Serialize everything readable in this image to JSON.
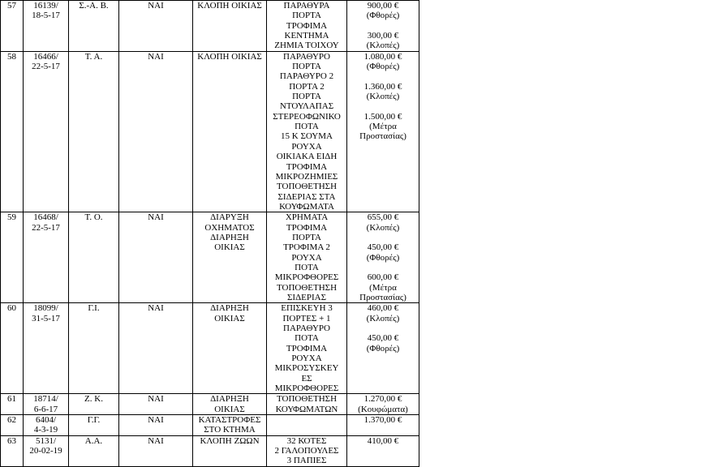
{
  "table": {
    "currency_symbol": "€",
    "rows": [
      {
        "index": "57",
        "case_lines": [
          "16139/",
          "18-5-17"
        ],
        "initials": "Σ.-Α. Β.",
        "recorded": "ΝΑΙ",
        "incident_lines": [
          "ΚΛΟΠΗ ΟΙΚΙΑΣ"
        ],
        "item_lines": [
          "ΠΑΡΑΘΥΡΑ",
          "ΠΟΡΤΑ",
          "ΤΡΟΦΙΜΑ",
          "ΚΕΝΤΗΜΑ",
          "ΖΗΜΙΑ ΤΟΙΧΟΥ"
        ],
        "amount_lines": [
          "900,00 €",
          "(Φθορές)",
          "",
          "300,00 €",
          "(Κλοπές)"
        ]
      },
      {
        "index": "58",
        "case_lines": [
          "16466/",
          "22-5-17"
        ],
        "initials": "Τ. Α.",
        "recorded": "ΝΑΙ",
        "incident_lines": [
          "ΚΛΟΠΗ ΟΙΚΙΑΣ"
        ],
        "item_lines": [
          "ΠΑΡΑΘΥΡΟ",
          "ΠΟΡΤΑ",
          "ΠΑΡΑΘΥΡΟ 2",
          "ΠΟΡΤΑ 2",
          "ΠΟΡΤΑ",
          "ΝΤΟΥΛΑΠΑΣ",
          "ΣΤΕΡΕΟΦΩΝΙΚΟ",
          "ΠΟΤΑ",
          "15 Κ ΣΟΥΜΑ",
          "ΡΟΥΧΑ",
          "ΟΙΚΙΑΚΑ ΕΙΔΗ",
          "ΤΡΟΦΙΜΑ",
          "ΜΙΚΡΟΖΗΜΙΕΣ",
          "ΤΟΠΟΘΕΤΗΣΗ",
          "ΣΙΔΕΡΙΑΣ ΣΤΑ",
          "ΚΟΥΦΩΜΑΤΑ"
        ],
        "amount_lines": [
          "1.080,00 €",
          "(Φθορές)",
          "",
          "1.360,00 €",
          "(Κλοπές)",
          "",
          "1.500,00 €",
          "(Μέτρα",
          "Προστασίας)"
        ]
      },
      {
        "index": "59",
        "case_lines": [
          "16468/",
          "22-5-17"
        ],
        "initials": "Τ. Ο.",
        "recorded": "ΝΑΙ",
        "incident_lines": [
          "ΔΙΑΡΥΞΗ",
          "ΟΧΗΜΑΤΟΣ",
          "ΔΙΑΡΗΞΗ",
          "ΟΙΚΙΑΣ"
        ],
        "item_lines": [
          "ΧΡΗΜΑΤΑ",
          "ΤΡΟΦΙΜΑ",
          "ΠΟΡΤΑ",
          "ΤΡΟΦΙΜΑ 2",
          "ΡΟΥΧΑ",
          "ΠΟΤΑ",
          "ΜΙΚΡΟΦΘΟΡΕΣ",
          "ΤΟΠΟΘΕΤΗΣΗ",
          "ΣΙΔΕΡΙΑΣ"
        ],
        "amount_lines": [
          "655,00 €",
          "(Κλοπές)",
          "",
          "450,00 €",
          "(Φθορές)",
          "",
          "600,00 €",
          "(Μέτρα",
          "Προστασίας)"
        ]
      },
      {
        "index": "60",
        "case_lines": [
          "18099/",
          "31-5-17"
        ],
        "initials": "Γ.Ι.",
        "recorded": "ΝΑΙ",
        "incident_lines": [
          "ΔΙΑΡΗΞΗ",
          "ΟΙΚΙΑΣ"
        ],
        "item_lines": [
          "ΕΠΙΣΚΕΥΗ 3",
          "ΠΟΡΤΕΣ + 1",
          "ΠΑΡΑΘΥΡΟ",
          "ΠΟΤΑ",
          "ΤΡΟΦΙΜΑ",
          "ΡΟΥΧΑ",
          "ΜΙΚΡΟΣΥΣΚΕΥ",
          "ΕΣ",
          "ΜΙΚΡΟΦΘΟΡΕΣ"
        ],
        "amount_lines": [
          "460,00 €",
          "(Κλοπές)",
          "",
          "450,00 €",
          "(Φθορές)"
        ]
      },
      {
        "index": "61",
        "case_lines": [
          "18714/",
          "6-6-17"
        ],
        "initials": "Ζ. Κ.",
        "recorded": "ΝΑΙ",
        "incident_lines": [
          "ΔΙΑΡΗΞΗ",
          "ΟΙΚΙΑΣ"
        ],
        "item_lines": [
          "ΤΟΠΟΘΕΤΗΣΗ",
          "ΚΟΥΦΩΜΑΤΩΝ"
        ],
        "amount_lines": [
          "1.270,00 €",
          "(Κουφώματα)"
        ]
      },
      {
        "index": "62",
        "case_lines": [
          "6404/",
          "4-3-19"
        ],
        "initials": "Γ.Γ.",
        "recorded": "ΝΑΙ",
        "incident_lines": [
          "ΚΑΤΑΣΤΡΟΦΕΣ",
          "ΣΤΟ ΚΤΗΜΑ"
        ],
        "item_lines": [],
        "amount_lines": [
          "1.370,00 €"
        ]
      },
      {
        "index": "63",
        "case_lines": [
          "5131/",
          "20-02-19"
        ],
        "initials": "Α.Α.",
        "recorded": "ΝΑΙ",
        "incident_lines": [
          "ΚΛΟΠΗ ΖΩΩΝ"
        ],
        "item_lines": [
          "32 ΚΟΤΕΣ",
          "2 ΓΑΛΟΠΟΥΛΕΣ",
          "3 ΠΑΠΙΕΣ"
        ],
        "amount_lines": [
          "410,00 €"
        ]
      }
    ]
  }
}
